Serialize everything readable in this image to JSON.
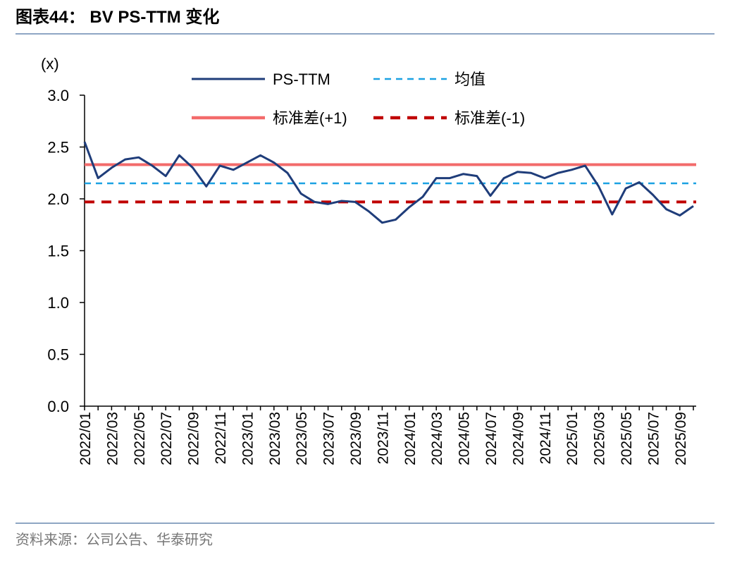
{
  "chart_data": {
    "type": "line",
    "title": "图表44： BV PS-TTM 变化",
    "y_label": "(x)",
    "source": "资料来源：公司公告、华泰研究",
    "categories": [
      "2022/01",
      null,
      "2022/03",
      null,
      "2022/05",
      null,
      "2022/07",
      null,
      "2022/09",
      null,
      "2022/11",
      null,
      "2023/01",
      null,
      "2023/03",
      null,
      "2023/05",
      null,
      "2023/07",
      null,
      "2023/09",
      null,
      "2023/11",
      null,
      "2024/01",
      null,
      "2024/03",
      null,
      "2024/05",
      null,
      "2024/07",
      null,
      "2024/09",
      null,
      "2024/11",
      null,
      "2025/01",
      null,
      "2025/03",
      null,
      "2025/05",
      null,
      "2025/07",
      null,
      "2025/09",
      null
    ],
    "series": [
      {
        "name": "PS-TTM",
        "color": "#1f3d7a",
        "values": [
          2.55,
          2.2,
          2.3,
          2.38,
          2.4,
          2.32,
          2.22,
          2.42,
          2.3,
          2.12,
          2.32,
          2.28,
          2.35,
          2.42,
          2.35,
          2.25,
          2.05,
          1.97,
          1.95,
          1.98,
          1.97,
          1.88,
          1.77,
          1.8,
          1.92,
          2.02,
          2.2,
          2.2,
          2.24,
          2.22,
          2.03,
          2.2,
          2.26,
          2.25,
          2.2,
          2.25,
          2.28,
          2.32,
          2.12,
          1.85,
          2.1,
          2.16,
          2.04,
          1.9,
          1.84,
          1.93
        ]
      }
    ],
    "reference_lines": [
      {
        "name": "均值",
        "value": 2.15,
        "color": "#1ba1e2",
        "style": "dashed"
      },
      {
        "name": "标准差(+1)",
        "value": 2.33,
        "color": "#f36b6b",
        "style": "solid"
      },
      {
        "name": "标准差(-1)",
        "value": 1.97,
        "color": "#c00000",
        "style": "dashed"
      }
    ],
    "ylim": [
      0,
      3
    ],
    "yticks": [
      {
        "value": 0,
        "label": "0.0"
      },
      0.5,
      {
        "value": 1,
        "label": "1.0"
      },
      1.5,
      {
        "value": 2,
        "label": "2.0"
      },
      2.5,
      {
        "value": 3,
        "label": "3.0"
      }
    ],
    "grid": false
  }
}
